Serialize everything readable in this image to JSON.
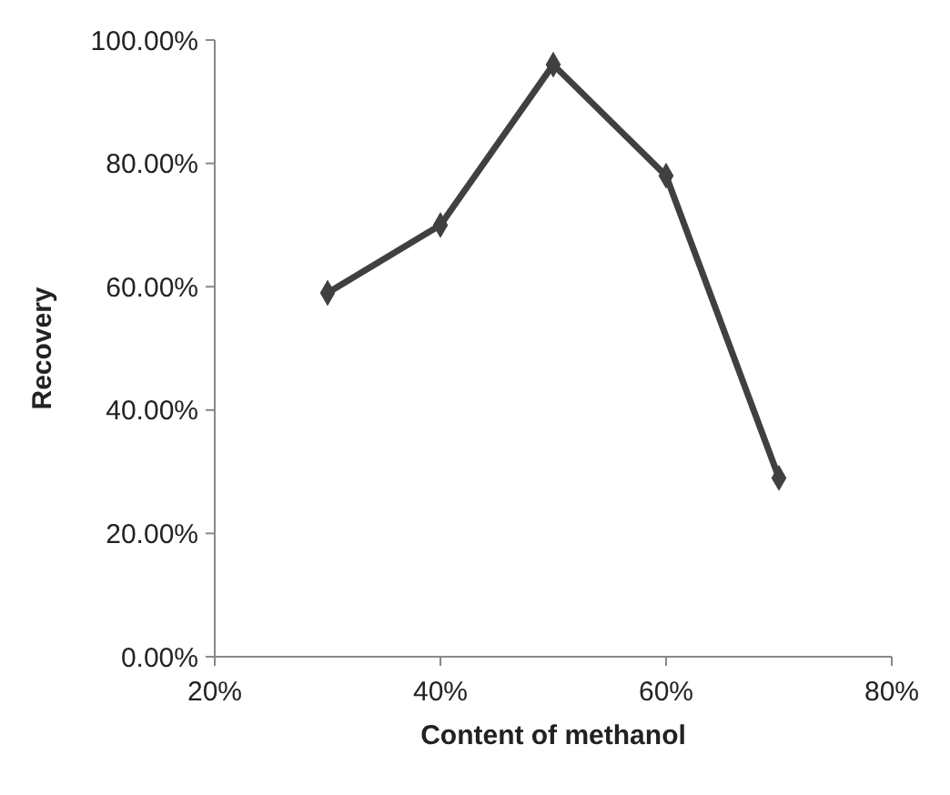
{
  "chart_data": {
    "type": "line",
    "xlabel": "Content of methanol",
    "ylabel": "Recovery",
    "x": [
      30,
      40,
      50,
      60,
      70
    ],
    "series": [
      {
        "color": "#404040",
        "values": [
          59,
          70,
          96,
          78,
          29
        ]
      }
    ],
    "xlim": [
      20,
      80
    ],
    "xticks": [
      {
        "value": 20,
        "label": "20%"
      },
      {
        "value": 40,
        "label": "40%"
      },
      {
        "value": 60,
        "label": "60%"
      },
      {
        "value": 80,
        "label": "80%"
      }
    ],
    "ylim": [
      0,
      100
    ],
    "yticks": [
      {
        "value": 0,
        "label": "0.00%"
      },
      {
        "value": 20,
        "label": "20.00%"
      },
      {
        "value": 40,
        "label": "40.00%"
      },
      {
        "value": 60,
        "label": "60.00%"
      },
      {
        "value": 80,
        "label": "80.00%"
      },
      {
        "value": 100,
        "label": "100.00%"
      }
    ],
    "grid": false,
    "marker": "diamond",
    "line_style": "solid"
  }
}
